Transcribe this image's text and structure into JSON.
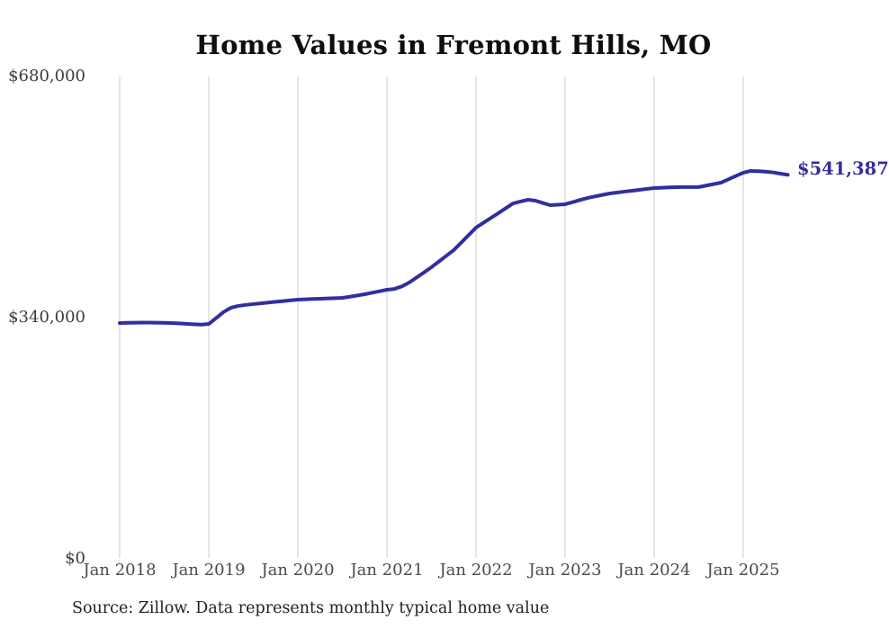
{
  "title": "Home Values in Fremont Hills, MO",
  "source_note": "Source: Zillow. Data represents monthly typical home value",
  "end_label": "$541,387",
  "colors": {
    "line": "#332e9e",
    "gridline": "#cccccc",
    "title_text": "#0e0e0e",
    "axis_text": "#4a4a4a"
  },
  "chart_data": {
    "type": "line",
    "title": "Home Values in Fremont Hills, MO",
    "xlabel": "",
    "ylabel": "",
    "ylim": [
      0,
      680000
    ],
    "grid": "vertical-only",
    "legend": "none",
    "x_start": "Jan 2018",
    "x_end": "Jul 2025",
    "frequency": "monthly",
    "x_ticks": [
      {
        "label": "Jan 2018",
        "month_index": 0
      },
      {
        "label": "Jan 2019",
        "month_index": 12
      },
      {
        "label": "Jan 2020",
        "month_index": 24
      },
      {
        "label": "Jan 2021",
        "month_index": 36
      },
      {
        "label": "Jan 2022",
        "month_index": 48
      },
      {
        "label": "Jan 2023",
        "month_index": 60
      },
      {
        "label": "Jan 2024",
        "month_index": 72
      },
      {
        "label": "Jan 2025",
        "month_index": 84
      }
    ],
    "y_ticks": [
      {
        "label": "$680,000",
        "value": 680000
      },
      {
        "label": "$340,000",
        "value": 340000
      },
      {
        "label": "$0",
        "value": 0
      }
    ],
    "series": [
      {
        "name": "typical_home_value",
        "color": "#332e9e",
        "last_point_label": "$541,387",
        "values": [
          332400,
          332700,
          332900,
          333000,
          333000,
          332900,
          332700,
          332400,
          331900,
          331300,
          330600,
          330100,
          331100,
          339500,
          348000,
          354000,
          356600,
          358000,
          359100,
          360200,
          361200,
          362300,
          363300,
          364400,
          365400,
          365900,
          366300,
          366700,
          367100,
          367500,
          367900,
          369500,
          371200,
          373000,
          375100,
          377200,
          379300,
          380500,
          384000,
          389500,
          396600,
          403800,
          411100,
          419100,
          427100,
          435200,
          445700,
          456300,
          466900,
          473700,
          480500,
          487200,
          494200,
          501100,
          503700,
          506200,
          504900,
          501700,
          498600,
          499200,
          499900,
          502800,
          505800,
          508700,
          510900,
          513000,
          515100,
          516400,
          517700,
          518900,
          520200,
          521500,
          522700,
          523200,
          523600,
          524000,
          524100,
          524100,
          524100,
          526200,
          528200,
          530300,
          535000,
          539700,
          544300,
          546800,
          546500,
          545800,
          544800,
          543000,
          541387
        ]
      }
    ]
  }
}
